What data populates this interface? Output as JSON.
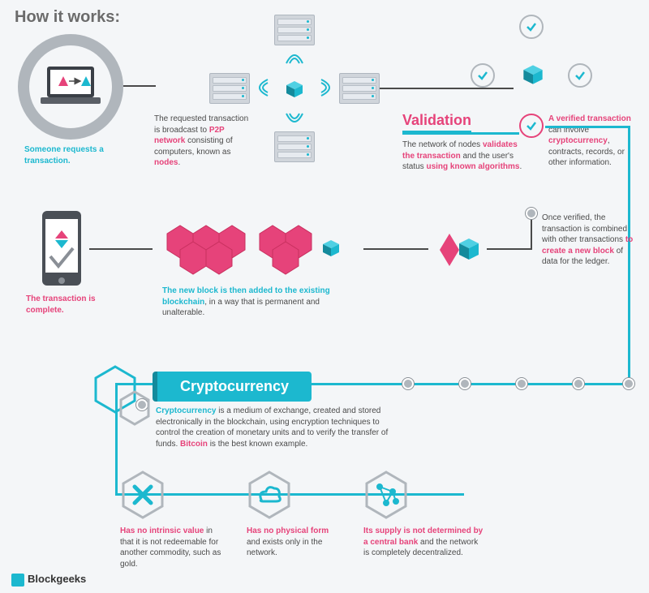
{
  "title": "How it works:",
  "colors": {
    "pink": "#e6437a",
    "teal": "#1cb8cf",
    "teal_dark": "#148a9c",
    "grey_text": "#4a4a4a",
    "grey_light": "#b0b6bc",
    "bg": "#f4f6f8",
    "server_body": "#d0d5db",
    "pink_hex": "#e6437a",
    "teal_cube": "#1cb8cf"
  },
  "step1": {
    "caption_html": "Someone requests a transaction."
  },
  "step2": {
    "caption_html": "The requested transaction is broadcast to <b class='pink'>P2P network</b> consisting of computers, known as <b class='pink'>nodes</b>."
  },
  "validation": {
    "label": "Validation",
    "caption_html": "The network of nodes <b class='pink'>validates the transaction</b> and the user's status <b class='pink'>using known algorithms</b>."
  },
  "verified": {
    "caption_html": "<b class='pink'>A verified transaction</b> can involve <b class='pink'>cryptocurrency</b>, contracts, records, or other information."
  },
  "combined": {
    "caption_html": "Once verified, the transaction is combined with other transactions <b class='pink'>to create a new block</b> of data for the ledger."
  },
  "added": {
    "caption_html": "<b class='teal'>The new block is then added to the existing blockchain</b>, in a way that is permanent and unalterable."
  },
  "complete": {
    "caption_html": "<b class='pink'>The transaction is complete.</b>"
  },
  "crypto": {
    "heading": "Cryptocurrency",
    "def_html": "<b class='teal'>Cryptocurrency</b> is a medium of exchange, created and stored electronically in the blockchain, using encryption techniques to control the creation of monetary units and to verify the transfer of funds. <b class='pink'>Bitcoin</b> is the best known example.",
    "features": [
      {
        "icon": "x",
        "html": "<b class='pink'>Has no intrinsic value</b> in that it is not redeemable for another commodity, such as gold."
      },
      {
        "icon": "cloud",
        "html": "<b class='pink'>Has no physical form</b> and exists only in the network."
      },
      {
        "icon": "net",
        "html": "<b class='pink'>Its supply is not determined by a central bank</b> and the network is completely decentralized."
      }
    ]
  },
  "footer": {
    "brand": "Blockgeeks"
  }
}
